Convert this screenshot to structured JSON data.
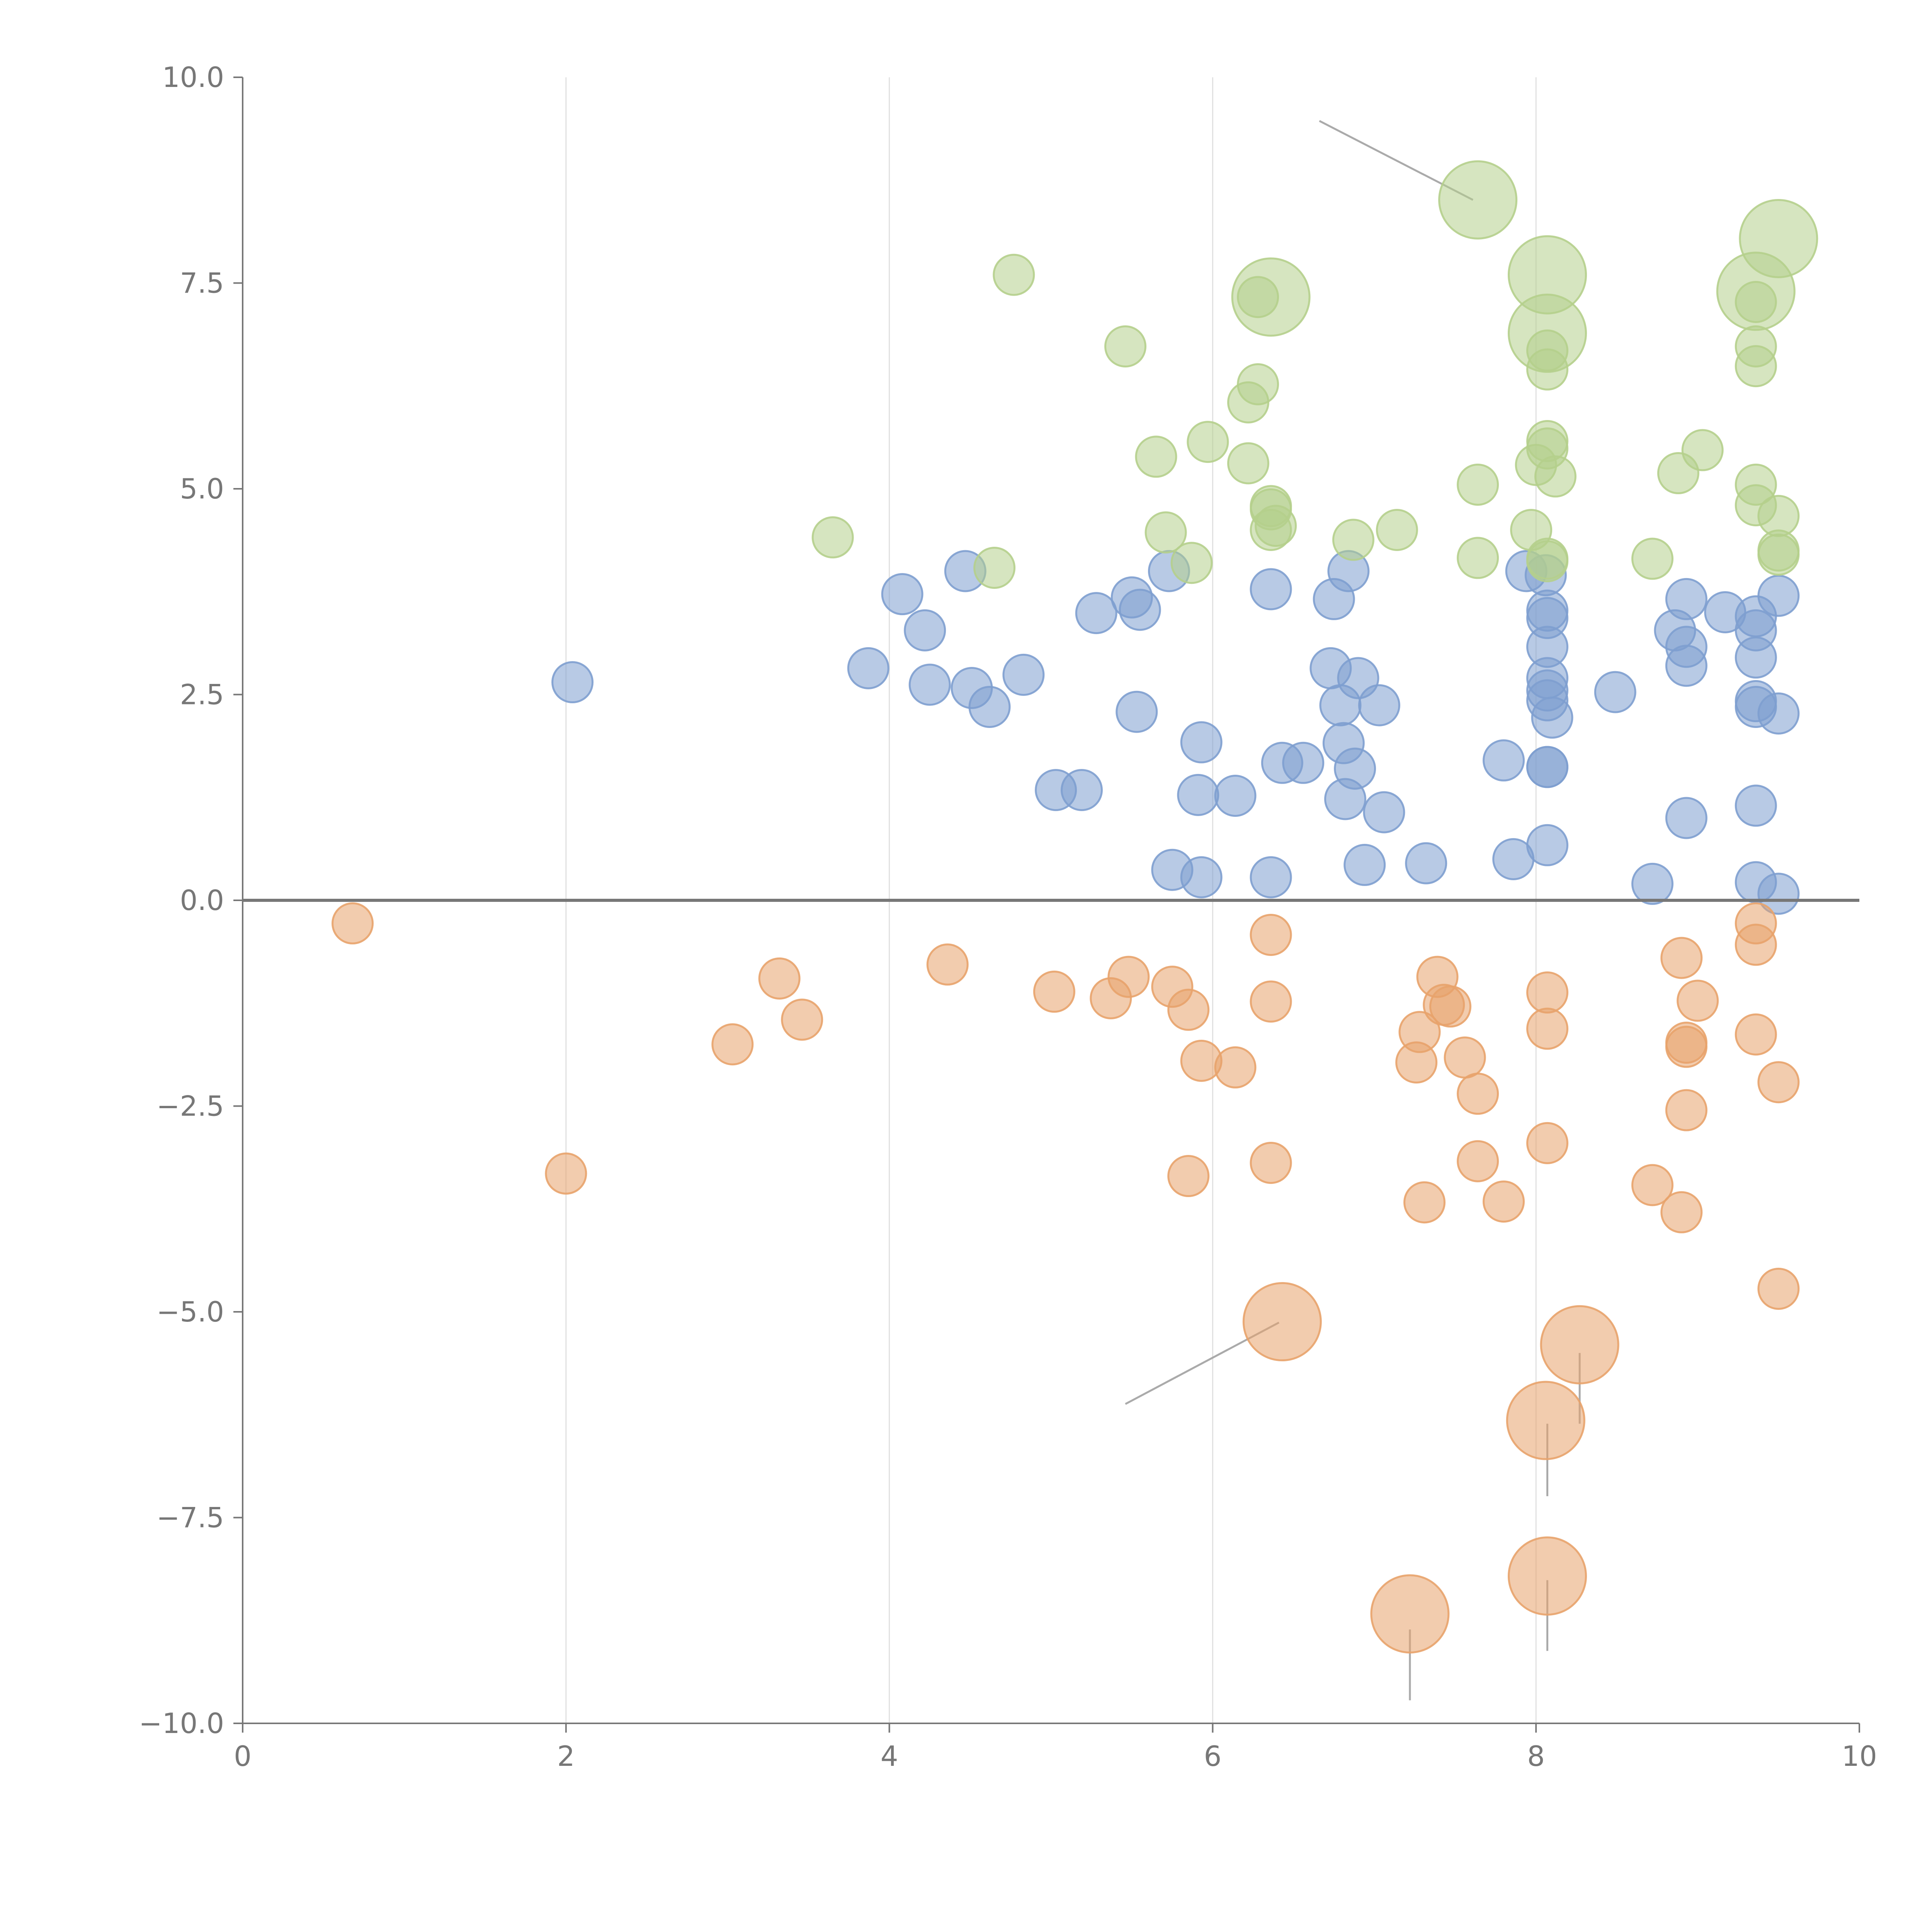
{
  "chart_data": {
    "type": "scatter",
    "title": "",
    "xlabel": "",
    "ylabel": "",
    "xlim": [
      0,
      10
    ],
    "ylim": [
      -10,
      10
    ],
    "xticks": [
      "0",
      "2",
      "4",
      "6",
      "8",
      "10"
    ],
    "yticks": [
      "10.0",
      "7.5",
      "5.0",
      "2.5",
      "0.0",
      "−2.5",
      "−5.0",
      "−7.5",
      "−10.0"
    ],
    "grid": "vertical",
    "legend": "none",
    "series": [
      {
        "name": "blue",
        "color": "#7e9fcf",
        "points": [
          [
            2.04,
            2.65
          ],
          [
            3.87,
            2.82
          ],
          [
            4.08,
            3.72
          ],
          [
            4.22,
            3.28
          ],
          [
            4.25,
            2.62
          ],
          [
            4.47,
            4.0
          ],
          [
            4.51,
            2.58
          ],
          [
            4.62,
            2.35
          ],
          [
            4.83,
            2.74
          ],
          [
            5.03,
            1.34
          ],
          [
            5.19,
            1.34
          ],
          [
            5.28,
            3.49
          ],
          [
            5.5,
            3.68
          ],
          [
            5.55,
            3.53
          ],
          [
            5.53,
            2.29
          ],
          [
            5.73,
            4.0
          ],
          [
            5.75,
            0.37
          ],
          [
            5.91,
            1.28
          ],
          [
            5.93,
            1.92
          ],
          [
            5.93,
            0.28
          ],
          [
            6.14,
            1.27
          ],
          [
            6.36,
            3.78
          ],
          [
            6.36,
            0.28
          ],
          [
            6.43,
            1.67
          ],
          [
            6.56,
            1.67
          ],
          [
            6.73,
            2.82
          ],
          [
            6.75,
            3.66
          ],
          [
            6.79,
            2.37
          ],
          [
            6.81,
            1.91
          ],
          [
            6.84,
            4.0
          ],
          [
            6.82,
            1.23
          ],
          [
            6.88,
            1.6
          ],
          [
            6.9,
            2.7
          ],
          [
            6.94,
            0.43
          ],
          [
            7.03,
            2.37
          ],
          [
            7.06,
            1.07
          ],
          [
            7.32,
            0.45
          ],
          [
            7.8,
            1.7
          ],
          [
            7.86,
            0.5
          ],
          [
            7.94,
            4.0
          ],
          [
            8.06,
            3.95
          ],
          [
            8.07,
            3.52
          ],
          [
            8.07,
            3.43
          ],
          [
            8.07,
            3.08
          ],
          [
            8.07,
            2.7
          ],
          [
            8.07,
            2.55
          ],
          [
            8.07,
            2.43
          ],
          [
            8.1,
            2.22
          ],
          [
            8.07,
            1.62
          ],
          [
            8.07,
            1.62
          ],
          [
            8.07,
            0.67
          ],
          [
            8.49,
            2.53
          ],
          [
            8.72,
            0.2
          ],
          [
            8.86,
            3.28
          ],
          [
            8.93,
            3.66
          ],
          [
            8.93,
            3.08
          ],
          [
            8.93,
            2.85
          ],
          [
            8.93,
            1.0
          ],
          [
            9.17,
            3.5
          ],
          [
            9.36,
            3.45
          ],
          [
            9.36,
            3.28
          ],
          [
            9.36,
            2.95
          ],
          [
            9.36,
            2.42
          ],
          [
            9.36,
            2.35
          ],
          [
            9.36,
            1.15
          ],
          [
            9.36,
            0.22
          ],
          [
            9.5,
            3.7
          ],
          [
            9.5,
            2.27
          ],
          [
            9.5,
            0.08
          ]
        ],
        "sizes": []
      },
      {
        "name": "orange",
        "color": "#e8a36c",
        "points": [
          [
            0.68,
            -0.28
          ],
          [
            2.0,
            -3.32
          ],
          [
            3.03,
            -1.75
          ],
          [
            3.32,
            -0.95
          ],
          [
            3.46,
            -1.45
          ],
          [
            4.36,
            -0.78
          ],
          [
            5.02,
            -1.11
          ],
          [
            5.37,
            -1.19
          ],
          [
            5.48,
            -0.93
          ],
          [
            5.75,
            -1.05
          ],
          [
            5.85,
            -1.33
          ],
          [
            5.85,
            -3.35
          ],
          [
            5.93,
            -1.95
          ],
          [
            6.14,
            -2.03
          ],
          [
            6.36,
            -0.42
          ],
          [
            6.36,
            -1.23
          ],
          [
            6.36,
            -3.19
          ],
          [
            7.26,
            -1.97
          ],
          [
            7.28,
            -1.6
          ],
          [
            7.31,
            -3.67
          ],
          [
            7.39,
            -0.93
          ],
          [
            7.43,
            -1.27
          ],
          [
            7.47,
            -1.29
          ],
          [
            7.56,
            -1.91
          ],
          [
            7.64,
            -2.35
          ],
          [
            7.64,
            -3.17
          ],
          [
            7.8,
            -3.66
          ],
          [
            8.07,
            -1.12
          ],
          [
            8.07,
            -1.56
          ],
          [
            8.07,
            -2.95
          ],
          [
            8.72,
            -3.46
          ],
          [
            8.9,
            -0.7
          ],
          [
            8.93,
            -1.73
          ],
          [
            8.93,
            -1.78
          ],
          [
            8.93,
            -2.55
          ],
          [
            8.9,
            -3.79
          ],
          [
            9.0,
            -1.22
          ],
          [
            9.36,
            -0.28
          ],
          [
            9.36,
            -0.54
          ],
          [
            9.36,
            -1.63
          ],
          [
            9.5,
            -2.21
          ],
          [
            9.5,
            -4.72
          ]
        ],
        "large_points": [
          [
            6.43,
            -5.12
          ],
          [
            8.27,
            -5.4
          ],
          [
            8.06,
            -6.32
          ],
          [
            7.22,
            -8.67
          ],
          [
            8.07,
            -8.21
          ]
        ]
      },
      {
        "name": "green",
        "color": "#b5cf8c",
        "points": [
          [
            3.65,
            4.41
          ],
          [
            4.65,
            4.04
          ],
          [
            4.77,
            7.6
          ],
          [
            5.46,
            6.73
          ],
          [
            5.65,
            5.39
          ],
          [
            5.71,
            4.47
          ],
          [
            5.87,
            4.1
          ],
          [
            5.97,
            5.57
          ],
          [
            6.22,
            5.31
          ],
          [
            6.22,
            6.05
          ],
          [
            6.28,
            6.27
          ],
          [
            6.28,
            7.33
          ],
          [
            6.36,
            4.79
          ],
          [
            6.36,
            4.75
          ],
          [
            6.36,
            4.5
          ],
          [
            6.39,
            4.55
          ],
          [
            6.87,
            4.38
          ],
          [
            7.14,
            4.5
          ],
          [
            7.64,
            5.05
          ],
          [
            7.64,
            4.16
          ],
          [
            7.97,
            4.5
          ],
          [
            8.0,
            5.29
          ],
          [
            8.07,
            5.58
          ],
          [
            8.07,
            5.49
          ],
          [
            8.12,
            5.15
          ],
          [
            8.07,
            6.45
          ],
          [
            8.07,
            6.68
          ],
          [
            8.07,
            4.15
          ],
          [
            8.07,
            4.12
          ],
          [
            8.72,
            4.15
          ],
          [
            8.88,
            5.19
          ],
          [
            9.03,
            5.47
          ],
          [
            9.36,
            5.05
          ],
          [
            9.36,
            4.8
          ],
          [
            9.36,
            6.73
          ],
          [
            9.36,
            6.49
          ],
          [
            9.36,
            7.27
          ],
          [
            9.5,
            4.67
          ],
          [
            9.5,
            4.25
          ],
          [
            9.5,
            4.2
          ]
        ],
        "large_points": [
          [
            7.64,
            8.51
          ],
          [
            8.07,
            7.6
          ],
          [
            8.07,
            6.89
          ],
          [
            9.36,
            7.4
          ],
          [
            9.5,
            8.04
          ],
          [
            6.36,
            7.33
          ]
        ]
      }
    ],
    "leaders": [
      [
        [
          6.66,
          9.47
        ],
        [
          7.61,
          8.51
        ]
      ],
      [
        [
          5.46,
          -6.12
        ],
        [
          6.41,
          -5.13
        ]
      ],
      [
        [
          8.27,
          -5.5
        ],
        [
          8.27,
          -6.36
        ]
      ],
      [
        [
          8.07,
          -6.36
        ],
        [
          8.07,
          -7.24
        ]
      ],
      [
        [
          7.22,
          -8.86
        ],
        [
          7.22,
          -9.72
        ]
      ],
      [
        [
          8.07,
          -8.26
        ],
        [
          8.07,
          -9.12
        ]
      ]
    ]
  }
}
